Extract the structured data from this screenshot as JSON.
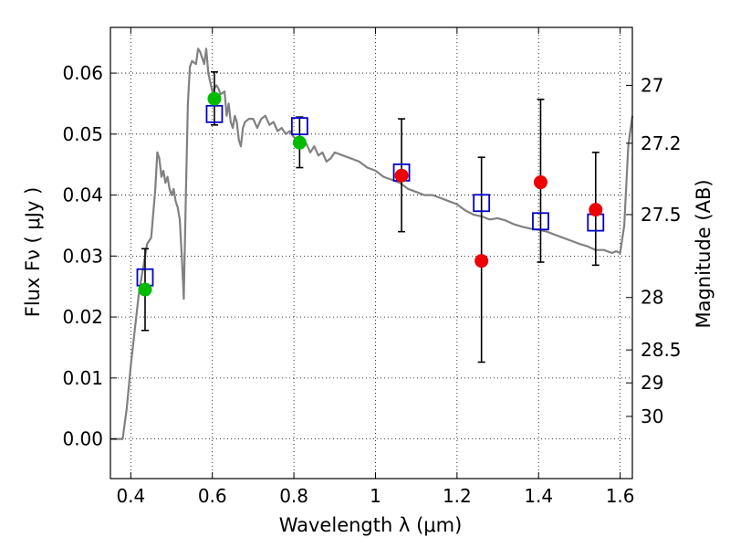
{
  "chart_data": {
    "type": "scatter",
    "xlabel": "Wavelength  λ (μm)",
    "ylabel": "Flux  Fν  ( μJy )",
    "y2label": "Magnitude (AB)",
    "xlim": [
      0.35,
      1.63
    ],
    "ylim": [
      -0.0065,
      0.0675
    ],
    "grid": true,
    "x_ticks": [
      0.4,
      0.6,
      0.8,
      1.0,
      1.2,
      1.4,
      1.6
    ],
    "x_tick_labels": [
      "0.4",
      "0.6",
      "0.8",
      "1",
      "1.2",
      "1.4",
      "1.6"
    ],
    "y_ticks": [
      0.0,
      0.01,
      0.02,
      0.03,
      0.04,
      0.05,
      0.06
    ],
    "y_tick_labels": [
      "0.00",
      "0.01",
      "0.02",
      "0.03",
      "0.04",
      "0.05",
      "0.06"
    ],
    "y2_ticks": [
      {
        "label": "27",
        "flux": 0.058
      },
      {
        "label": "27.2",
        "flux": 0.0485
      },
      {
        "label": "27.5",
        "flux": 0.0368
      },
      {
        "label": "28",
        "flux": 0.0232
      },
      {
        "label": "28.5",
        "flux": 0.0146
      },
      {
        "label": "29",
        "flux": 0.0092
      },
      {
        "label": "30",
        "flux": 0.0037
      }
    ],
    "colors": {
      "model": "#808080",
      "green": "#00bb00",
      "red": "#ee0000",
      "square": "#0000cc",
      "errorbar": "#000000"
    },
    "model_spectrum": [
      [
        0.35,
        0.0
      ],
      [
        0.38,
        0.0
      ],
      [
        0.39,
        0.005
      ],
      [
        0.4,
        0.012
      ],
      [
        0.41,
        0.018
      ],
      [
        0.42,
        0.024
      ],
      [
        0.43,
        0.028
      ],
      [
        0.44,
        0.032
      ],
      [
        0.45,
        0.033
      ],
      [
        0.46,
        0.041
      ],
      [
        0.465,
        0.047
      ],
      [
        0.47,
        0.046
      ],
      [
        0.475,
        0.043
      ],
      [
        0.48,
        0.044
      ],
      [
        0.485,
        0.042
      ],
      [
        0.49,
        0.043
      ],
      [
        0.495,
        0.041
      ],
      [
        0.5,
        0.04
      ],
      [
        0.505,
        0.041
      ],
      [
        0.51,
        0.039
      ],
      [
        0.515,
        0.038
      ],
      [
        0.52,
        0.036
      ],
      [
        0.525,
        0.03
      ],
      [
        0.53,
        0.023
      ],
      [
        0.535,
        0.04
      ],
      [
        0.54,
        0.055
      ],
      [
        0.545,
        0.061
      ],
      [
        0.55,
        0.062
      ],
      [
        0.56,
        0.0615
      ],
      [
        0.565,
        0.064
      ],
      [
        0.57,
        0.0635
      ],
      [
        0.58,
        0.0615
      ],
      [
        0.585,
        0.064
      ],
      [
        0.59,
        0.06
      ],
      [
        0.6,
        0.057
      ],
      [
        0.61,
        0.058
      ],
      [
        0.615,
        0.0575
      ],
      [
        0.62,
        0.0565
      ],
      [
        0.63,
        0.057
      ],
      [
        0.635,
        0.053
      ],
      [
        0.64,
        0.055
      ],
      [
        0.645,
        0.052
      ],
      [
        0.65,
        0.051
      ],
      [
        0.655,
        0.053
      ],
      [
        0.66,
        0.052
      ],
      [
        0.665,
        0.049
      ],
      [
        0.67,
        0.048
      ],
      [
        0.675,
        0.051
      ],
      [
        0.68,
        0.052
      ],
      [
        0.69,
        0.0525
      ],
      [
        0.7,
        0.0525
      ],
      [
        0.71,
        0.051
      ],
      [
        0.72,
        0.0525
      ],
      [
        0.73,
        0.053
      ],
      [
        0.74,
        0.0515
      ],
      [
        0.75,
        0.052
      ],
      [
        0.76,
        0.0505
      ],
      [
        0.77,
        0.051
      ],
      [
        0.78,
        0.05
      ],
      [
        0.79,
        0.0505
      ],
      [
        0.8,
        0.0495
      ],
      [
        0.81,
        0.049
      ],
      [
        0.82,
        0.048
      ],
      [
        0.83,
        0.0485
      ],
      [
        0.84,
        0.047
      ],
      [
        0.85,
        0.048
      ],
      [
        0.86,
        0.0465
      ],
      [
        0.87,
        0.047
      ],
      [
        0.88,
        0.0455
      ],
      [
        0.89,
        0.046
      ],
      [
        0.9,
        0.047
      ],
      [
        0.92,
        0.0465
      ],
      [
        0.94,
        0.046
      ],
      [
        0.96,
        0.0455
      ],
      [
        0.98,
        0.0445
      ],
      [
        1.0,
        0.044
      ],
      [
        1.02,
        0.043
      ],
      [
        1.04,
        0.0425
      ],
      [
        1.06,
        0.042
      ],
      [
        1.08,
        0.041
      ],
      [
        1.1,
        0.0405
      ],
      [
        1.12,
        0.04
      ],
      [
        1.14,
        0.04
      ],
      [
        1.16,
        0.0395
      ],
      [
        1.18,
        0.039
      ],
      [
        1.2,
        0.0385
      ],
      [
        1.22,
        0.0375
      ],
      [
        1.24,
        0.0368
      ],
      [
        1.26,
        0.0365
      ],
      [
        1.28,
        0.036
      ],
      [
        1.3,
        0.0362
      ],
      [
        1.32,
        0.0358
      ],
      [
        1.34,
        0.0352
      ],
      [
        1.36,
        0.0348
      ],
      [
        1.38,
        0.0345
      ],
      [
        1.4,
        0.0343
      ],
      [
        1.42,
        0.034
      ],
      [
        1.44,
        0.0335
      ],
      [
        1.46,
        0.033
      ],
      [
        1.48,
        0.0325
      ],
      [
        1.5,
        0.032
      ],
      [
        1.52,
        0.0316
      ],
      [
        1.54,
        0.031
      ],
      [
        1.56,
        0.031
      ],
      [
        1.58,
        0.0305
      ],
      [
        1.59,
        0.0308
      ],
      [
        1.6,
        0.0305
      ],
      [
        1.61,
        0.035
      ],
      [
        1.62,
        0.048
      ],
      [
        1.63,
        0.053
      ]
    ],
    "green_points": [
      {
        "x": 0.435,
        "y": 0.0245
      },
      {
        "x": 0.605,
        "y": 0.0558
      },
      {
        "x": 0.814,
        "y": 0.0486
      }
    ],
    "red_points": [
      {
        "x": 1.064,
        "y": 0.0432
      },
      {
        "x": 1.26,
        "y": 0.0292
      },
      {
        "x": 1.405,
        "y": 0.0421
      },
      {
        "x": 1.54,
        "y": 0.0376
      }
    ],
    "model_squares": [
      {
        "x": 0.435,
        "y": 0.0265
      },
      {
        "x": 0.605,
        "y": 0.0533
      },
      {
        "x": 0.814,
        "y": 0.0513
      },
      {
        "x": 1.064,
        "y": 0.0437
      },
      {
        "x": 1.26,
        "y": 0.0387
      },
      {
        "x": 1.405,
        "y": 0.0357
      },
      {
        "x": 1.54,
        "y": 0.0355
      }
    ],
    "error_bars": [
      {
        "x": 0.435,
        "low": 0.0178,
        "high": 0.0312
      },
      {
        "x": 0.605,
        "low": 0.0515,
        "high": 0.0602
      },
      {
        "x": 0.814,
        "low": 0.0445,
        "high": 0.0528
      },
      {
        "x": 1.064,
        "low": 0.034,
        "high": 0.0525
      },
      {
        "x": 1.26,
        "low": 0.0126,
        "high": 0.0462
      },
      {
        "x": 1.405,
        "low": 0.029,
        "high": 0.0557
      },
      {
        "x": 1.54,
        "low": 0.0285,
        "high": 0.047
      }
    ]
  }
}
